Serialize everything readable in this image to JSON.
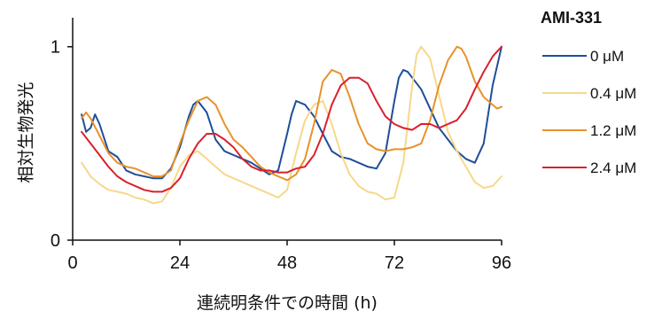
{
  "chart_data": {
    "type": "line",
    "xlabel": "連続明条件での時間 (h)",
    "ylabel": "相対生物発光",
    "xlim": [
      0,
      96
    ],
    "ylim": [
      0,
      1.15
    ],
    "xticks": [
      "0",
      "24",
      "48",
      "72",
      "96"
    ],
    "xtick_values": [
      0,
      24,
      48,
      72,
      96
    ],
    "yticks": [
      "0",
      "1"
    ],
    "ytick_values": [
      0,
      1
    ],
    "legend_title": "AMI-331",
    "legend_position": "right",
    "series": [
      {
        "name": "0 μM",
        "color": "#1f4e99",
        "x": [
          2,
          3,
          4,
          5,
          6,
          8,
          10,
          12,
          14,
          16,
          18,
          20,
          22,
          24,
          26,
          27,
          28,
          30,
          32,
          34,
          36,
          38,
          40,
          42,
          44,
          46,
          48,
          49,
          50,
          52,
          54,
          56,
          58,
          60,
          62,
          64,
          66,
          68,
          70,
          72,
          73,
          74,
          75,
          76,
          78,
          80,
          82,
          84,
          86,
          88,
          90,
          92,
          94,
          96
        ],
        "y": [
          0.65,
          0.56,
          0.58,
          0.65,
          0.6,
          0.46,
          0.43,
          0.36,
          0.34,
          0.33,
          0.32,
          0.32,
          0.37,
          0.48,
          0.64,
          0.7,
          0.72,
          0.66,
          0.52,
          0.46,
          0.44,
          0.42,
          0.4,
          0.37,
          0.34,
          0.36,
          0.55,
          0.65,
          0.72,
          0.7,
          0.64,
          0.55,
          0.46,
          0.43,
          0.42,
          0.4,
          0.38,
          0.37,
          0.45,
          0.72,
          0.84,
          0.88,
          0.87,
          0.84,
          0.78,
          0.68,
          0.58,
          0.52,
          0.46,
          0.42,
          0.4,
          0.5,
          0.8,
          1.0
        ]
      },
      {
        "name": "0.4 μM",
        "color": "#f7d88a",
        "x": [
          2,
          4,
          6,
          8,
          10,
          12,
          14,
          16,
          18,
          20,
          22,
          24,
          26,
          28,
          30,
          32,
          34,
          36,
          38,
          40,
          42,
          44,
          46,
          48,
          50,
          52,
          54,
          56,
          58,
          60,
          62,
          64,
          66,
          68,
          70,
          72,
          74,
          76,
          77,
          78,
          80,
          82,
          84,
          86,
          88,
          90,
          92,
          94,
          96
        ],
        "y": [
          0.4,
          0.33,
          0.29,
          0.26,
          0.25,
          0.24,
          0.22,
          0.21,
          0.19,
          0.2,
          0.27,
          0.38,
          0.44,
          0.46,
          0.42,
          0.38,
          0.34,
          0.32,
          0.3,
          0.28,
          0.26,
          0.24,
          0.22,
          0.26,
          0.45,
          0.62,
          0.7,
          0.72,
          0.6,
          0.45,
          0.34,
          0.28,
          0.25,
          0.24,
          0.21,
          0.22,
          0.4,
          0.8,
          0.96,
          1.0,
          0.94,
          0.75,
          0.56,
          0.46,
          0.38,
          0.3,
          0.27,
          0.28,
          0.33
        ]
      },
      {
        "name": "1.2 μM",
        "color": "#e8922b",
        "x": [
          2,
          3,
          4,
          6,
          8,
          10,
          12,
          14,
          16,
          18,
          20,
          22,
          24,
          26,
          28,
          30,
          32,
          34,
          36,
          38,
          40,
          42,
          44,
          46,
          48,
          50,
          52,
          54,
          56,
          58,
          60,
          62,
          64,
          66,
          68,
          70,
          72,
          74,
          76,
          78,
          80,
          82,
          84,
          86,
          87,
          88,
          90,
          92,
          94,
          95,
          96
        ],
        "y": [
          0.63,
          0.66,
          0.63,
          0.54,
          0.45,
          0.4,
          0.38,
          0.37,
          0.35,
          0.33,
          0.33,
          0.36,
          0.5,
          0.62,
          0.72,
          0.74,
          0.7,
          0.6,
          0.52,
          0.48,
          0.43,
          0.38,
          0.35,
          0.33,
          0.31,
          0.34,
          0.42,
          0.6,
          0.82,
          0.88,
          0.86,
          0.74,
          0.6,
          0.5,
          0.47,
          0.46,
          0.47,
          0.47,
          0.48,
          0.5,
          0.62,
          0.8,
          0.93,
          1.0,
          0.99,
          0.95,
          0.82,
          0.74,
          0.7,
          0.68,
          0.69
        ]
      },
      {
        "name": "2.4 μM",
        "color": "#d9212b",
        "x": [
          2,
          4,
          6,
          8,
          10,
          12,
          14,
          16,
          18,
          20,
          22,
          24,
          26,
          28,
          30,
          32,
          34,
          36,
          38,
          40,
          42,
          44,
          46,
          48,
          50,
          52,
          54,
          56,
          58,
          60,
          62,
          64,
          66,
          68,
          70,
          72,
          74,
          76,
          78,
          80,
          82,
          84,
          86,
          88,
          90,
          92,
          94,
          96
        ],
        "y": [
          0.56,
          0.5,
          0.44,
          0.38,
          0.33,
          0.3,
          0.28,
          0.26,
          0.25,
          0.25,
          0.27,
          0.32,
          0.42,
          0.5,
          0.55,
          0.55,
          0.52,
          0.48,
          0.42,
          0.38,
          0.36,
          0.36,
          0.35,
          0.35,
          0.37,
          0.38,
          0.44,
          0.55,
          0.7,
          0.8,
          0.84,
          0.84,
          0.81,
          0.72,
          0.64,
          0.6,
          0.58,
          0.57,
          0.6,
          0.6,
          0.58,
          0.6,
          0.62,
          0.68,
          0.78,
          0.87,
          0.95,
          1.0
        ]
      }
    ]
  }
}
